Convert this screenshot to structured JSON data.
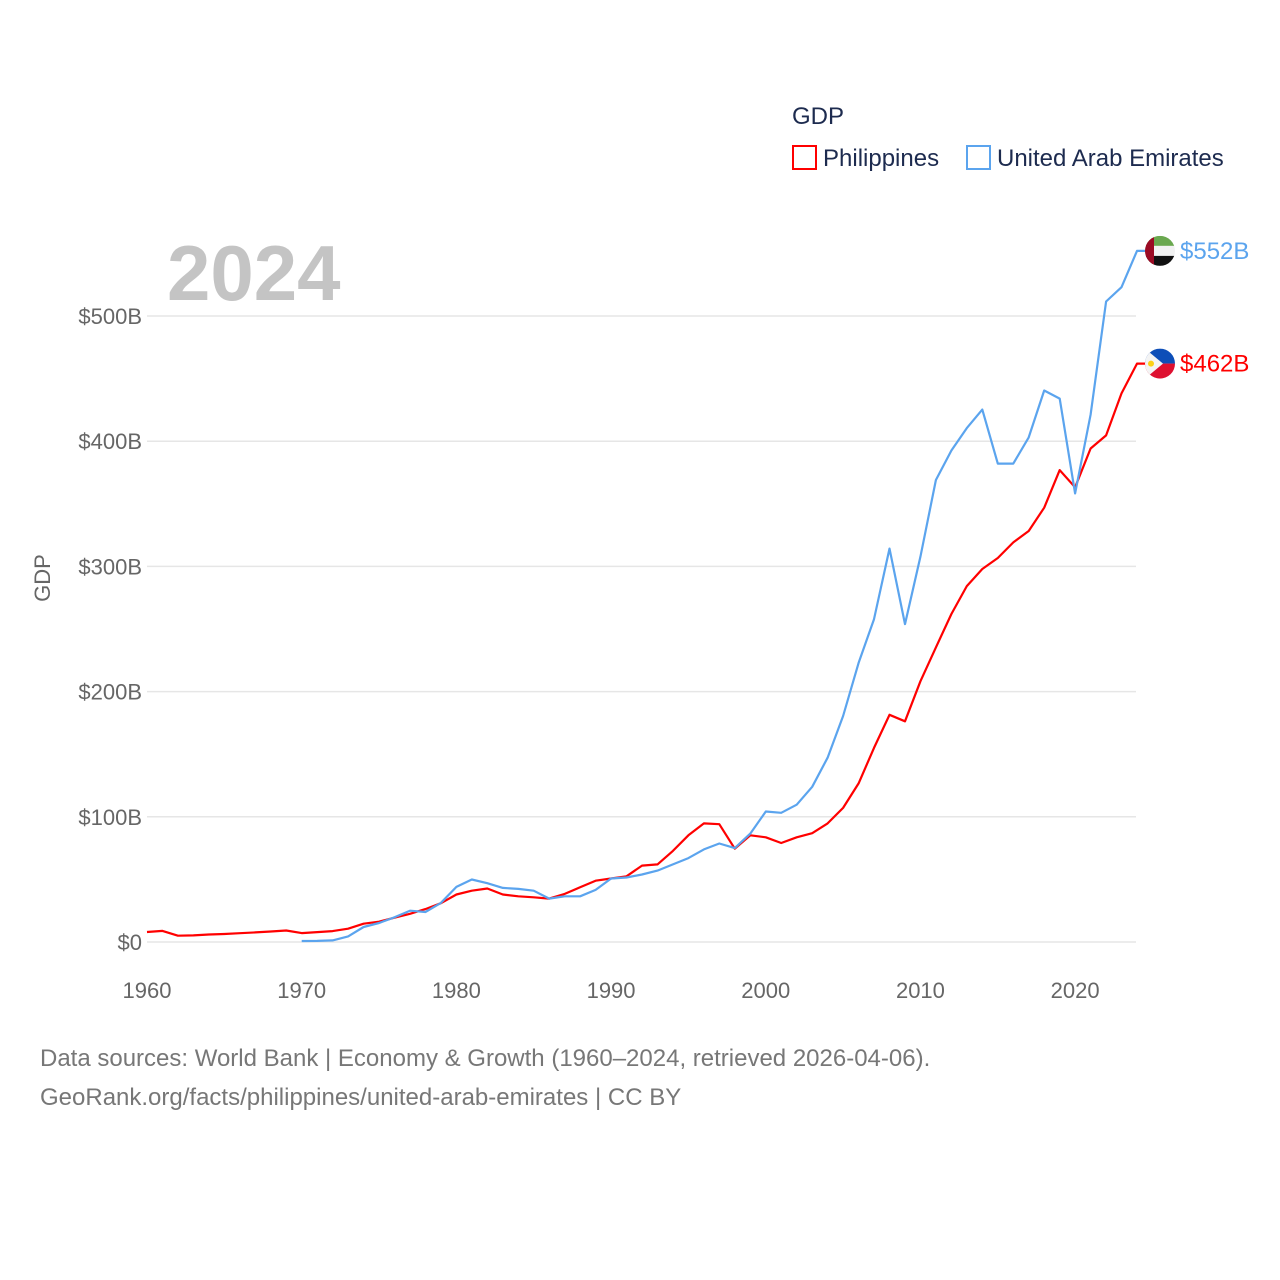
{
  "chart_data": {
    "type": "line",
    "title": "GDP",
    "ylabel": "GDP",
    "xlabel": "",
    "year_label": "2024",
    "xlim": [
      1960,
      2024
    ],
    "ylim": [
      0,
      550
    ],
    "x_ticks": [
      "1960",
      "1970",
      "1980",
      "1990",
      "2000",
      "2010",
      "2020"
    ],
    "y_ticks": [
      {
        "value": 0,
        "label": "$0"
      },
      {
        "value": 100,
        "label": "$100B"
      },
      {
        "value": 200,
        "label": "$200B"
      },
      {
        "value": 300,
        "label": "$300B"
      },
      {
        "value": 400,
        "label": "$400B"
      },
      {
        "value": 500,
        "label": "$500B"
      }
    ],
    "grid": true,
    "legend_position": "top-right",
    "units": "billions USD",
    "series": [
      {
        "name": "Philippines",
        "color": "#ff0000",
        "start_year": 1960,
        "end_label": "$462B",
        "flag": "philippines-flag",
        "values": [
          8.0,
          8.9,
          5.0,
          5.3,
          6.0,
          6.4,
          7.0,
          7.7,
          8.4,
          9.2,
          7.1,
          7.9,
          8.7,
          10.6,
          14.6,
          16.2,
          19.4,
          22.5,
          26.3,
          31.0,
          37.9,
          41.0,
          42.7,
          37.9,
          36.5,
          35.7,
          34.7,
          38.4,
          43.7,
          49.0,
          50.7,
          52.5,
          61.0,
          62.0,
          72.8,
          85.2,
          94.7,
          94.1,
          74.5,
          85.2,
          83.6,
          79.1,
          83.6,
          86.9,
          94.7,
          107.1,
          126.7,
          155.0,
          181.5,
          176.3,
          208.2,
          235.3,
          262.0,
          284.3,
          297.9,
          306.7,
          319.2,
          328.3,
          346.9,
          376.9,
          363.2,
          394.2,
          404.6,
          438.2,
          462.0
        ]
      },
      {
        "name": "United Arab Emirates",
        "color": "#5ba4ee",
        "start_year": 1970,
        "end_label": "$552B",
        "flag": "uae-flag",
        "values": [
          0.8,
          0.9,
          1.3,
          4.5,
          12.0,
          15.2,
          19.7,
          25.0,
          24.0,
          31.2,
          44.0,
          49.9,
          47.0,
          43.2,
          42.4,
          41.0,
          34.7,
          36.5,
          36.5,
          41.6,
          50.7,
          51.5,
          53.9,
          57.0,
          62.0,
          67.0,
          74.0,
          78.7,
          75.0,
          86.6,
          104.2,
          103.2,
          109.7,
          124.0,
          147.2,
          180.5,
          222.9,
          257.8,
          314.2,
          253.9,
          307.7,
          369.0,
          392.6,
          410.5,
          425.2,
          382.1,
          382.1,
          403.0,
          440.5,
          434.0,
          358.3,
          421.2,
          511.6,
          523.0,
          552.0
        ]
      }
    ]
  },
  "footer": {
    "line1": "Data sources: World Bank | Economy & Growth (1960–2024, retrieved 2026-04-06).",
    "line2": "GeoRank.org/facts/philippines/united-arab-emirates | CC BY"
  }
}
